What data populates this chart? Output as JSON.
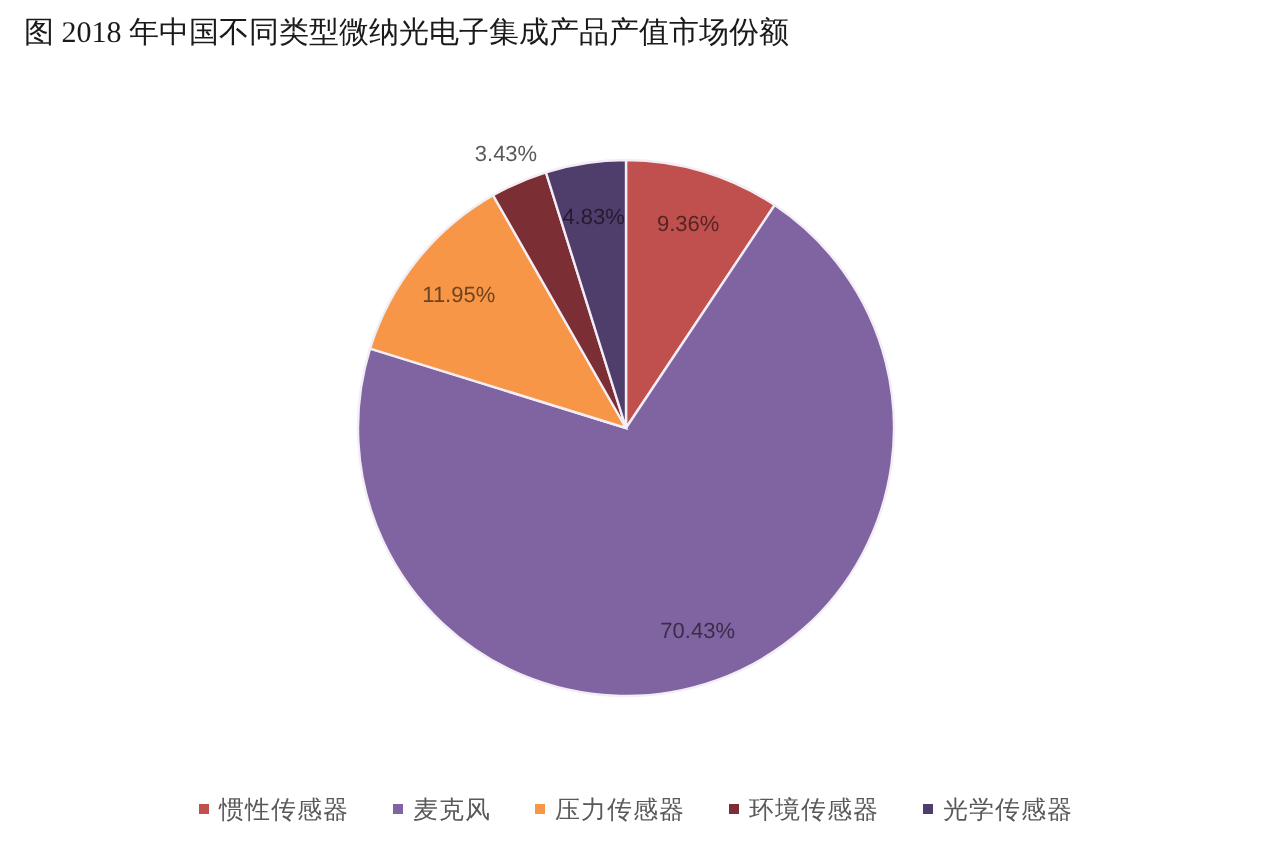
{
  "chart_data": {
    "type": "pie",
    "title": "图 2018 年中国不同类型微纳光电子集成产品产值市场份额",
    "categories": [
      "惯性传感器",
      "麦克风",
      "压力传感器",
      "环境传感器",
      "光学传感器"
    ],
    "values": [
      9.36,
      70.43,
      11.95,
      3.43,
      4.83
    ],
    "colors": [
      "#c0504d",
      "#8064a2",
      "#f79646",
      "#7b2e33",
      "#4f3d6b"
    ],
    "value_labels": [
      "9.36%",
      "70.43%",
      "11.95%",
      "3.43%",
      "4.83%"
    ],
    "legend": "bottom"
  }
}
